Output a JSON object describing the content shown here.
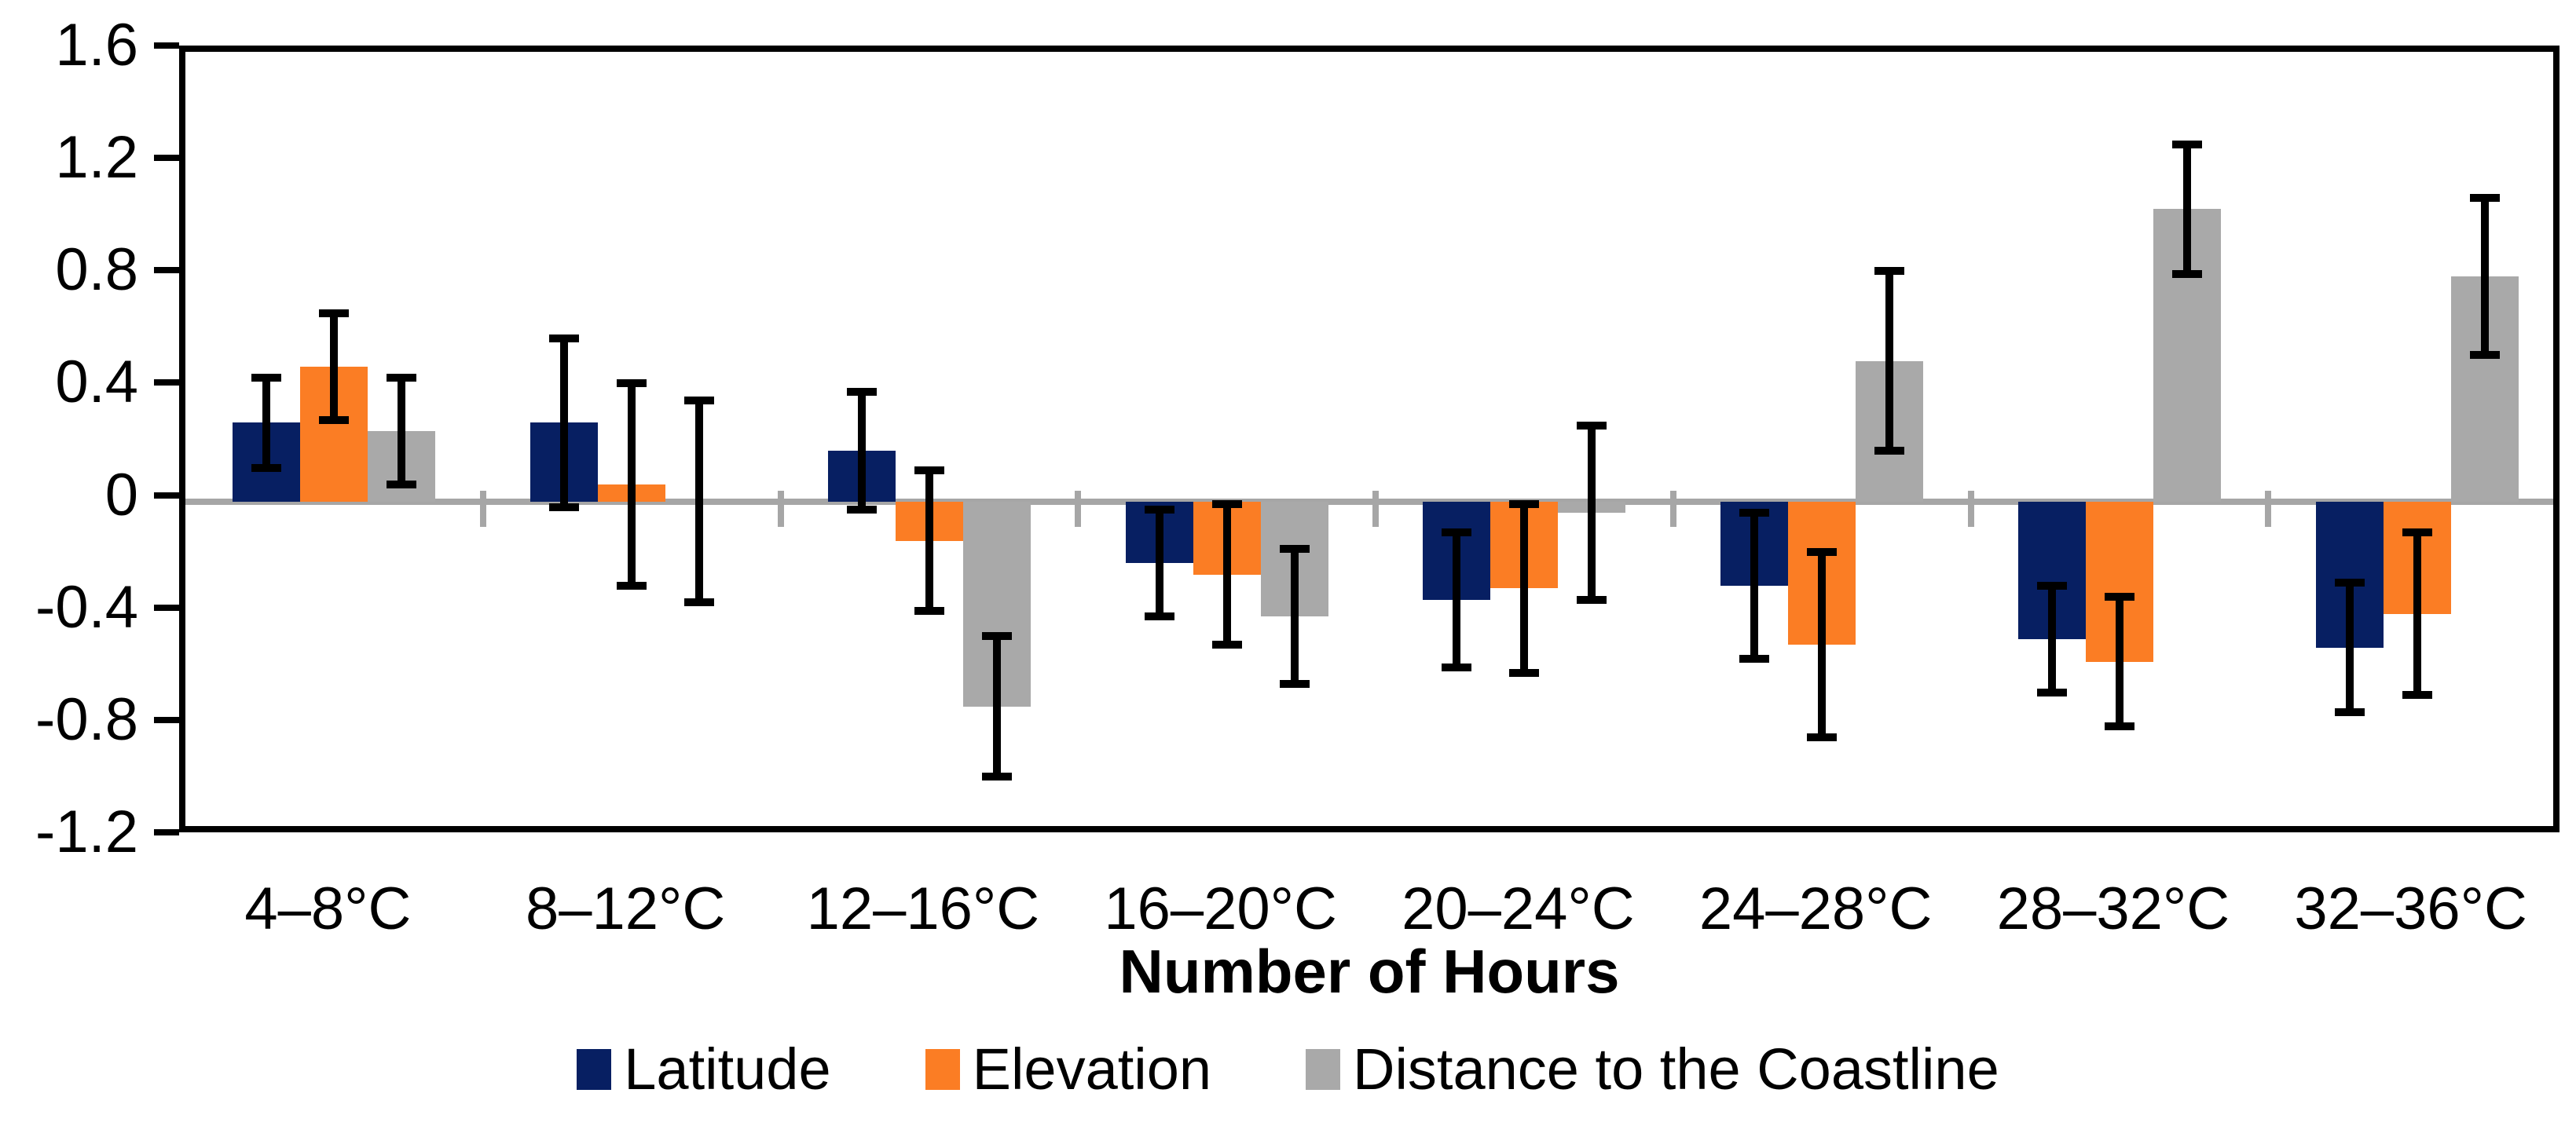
{
  "chart_data": {
    "type": "bar",
    "title": "",
    "xlabel": "Number of Hours",
    "ylabel": "",
    "ylim": [
      -1.2,
      1.6
    ],
    "ytick_step": 0.4,
    "ytick_labels": [
      "1.6",
      "1.2",
      "0.8",
      "0.4",
      "0",
      "-0.4",
      "-0.8",
      "-1.2"
    ],
    "ytick_values": [
      1.6,
      1.2,
      0.8,
      0.4,
      0,
      -0.4,
      -0.8,
      -1.2
    ],
    "grid": "zero-line-only",
    "legend_position": "bottom",
    "error_bars": true,
    "categories": [
      "4–8°C",
      "8–12°C",
      "12–16°C",
      "16–20°C",
      "20–24°C",
      "24–28°C",
      "28–32°C",
      "32–36°C"
    ],
    "series": [
      {
        "name": "Latitude",
        "color": "#071F62",
        "values": [
          0.28,
          0.28,
          0.18,
          -0.22,
          -0.35,
          -0.3,
          -0.49,
          -0.52
        ],
        "errors": [
          0.16,
          0.3,
          0.21,
          0.19,
          0.24,
          0.26,
          0.19,
          0.23
        ]
      },
      {
        "name": "Elevation",
        "color": "#FB7D24",
        "values": [
          0.48,
          0.06,
          -0.14,
          -0.26,
          -0.31,
          -0.51,
          -0.57,
          -0.4
        ],
        "errors": [
          0.19,
          0.36,
          0.25,
          0.25,
          0.3,
          0.33,
          0.23,
          0.29
        ]
      },
      {
        "name": "Distance to the Coastline",
        "color": "#A9A9A9",
        "values": [
          0.25,
          0.0,
          -0.73,
          -0.41,
          -0.04,
          0.5,
          1.04,
          0.8
        ],
        "errors": [
          0.19,
          0.36,
          0.25,
          0.24,
          0.31,
          0.32,
          0.23,
          0.28
        ]
      }
    ],
    "colors": {
      "axis_frame": "#000000",
      "zero_line": "#A6A6A6",
      "error_bar": "#000000",
      "text": "#000000",
      "background": "#FFFFFF"
    }
  }
}
